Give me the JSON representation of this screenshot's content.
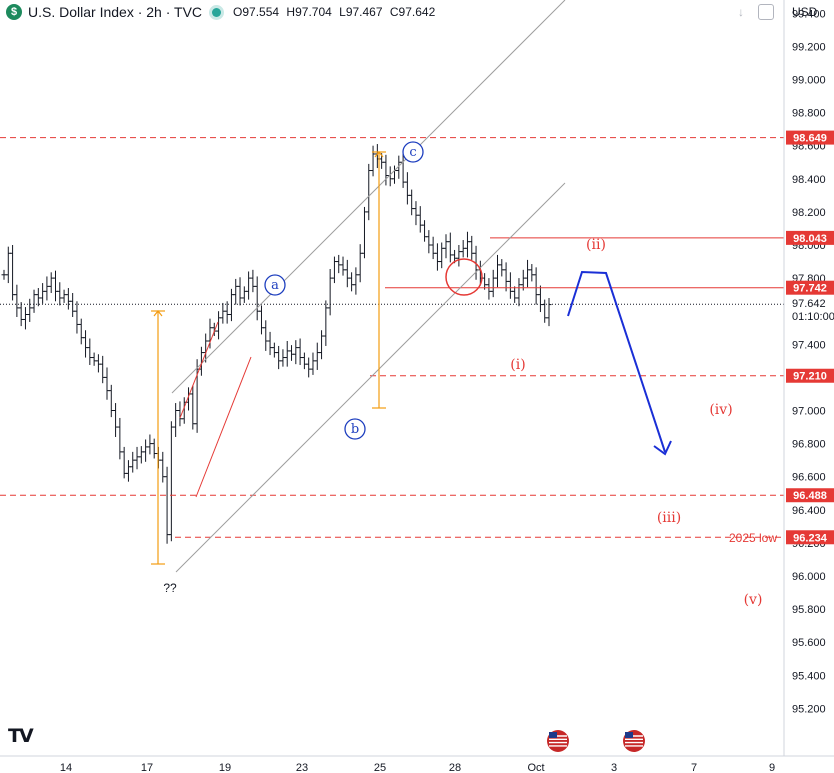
{
  "header": {
    "symbol_letter": "$",
    "title": "U.S. Dollar Index · 2h · TVC",
    "ohlc": [
      {
        "key": "O",
        "value": "97.554"
      },
      {
        "key": "H",
        "value": "97.704"
      },
      {
        "key": "L",
        "value": "97.467"
      },
      {
        "key": "C",
        "value": "97.642"
      }
    ],
    "currency": "USD"
  },
  "logo_text": "TV",
  "colors": {
    "price_level": "#e53935",
    "channel": "#9e9e9e",
    "wave_blue": "#1e3fbf",
    "projection": "#1a2fd6",
    "measure": "#f39c12",
    "candle": "#131722",
    "current_price_bg": "#131722",
    "symbol_green": "#1d8a5d"
  },
  "chart_data": {
    "type": "candlestick",
    "x_ticks": [
      "14",
      "17",
      "19",
      "23",
      "25",
      "28",
      "Oct",
      "3",
      "7",
      "9"
    ],
    "y_ticks": [
      "99.400",
      "99.200",
      "99.000",
      "98.800",
      "98.600",
      "98.400",
      "98.200",
      "98.000",
      "97.800",
      "97.600",
      "97.400",
      "97.200",
      "97.000",
      "96.800",
      "96.600",
      "96.400",
      "96.200",
      "96.000",
      "95.800",
      "95.600",
      "95.400",
      "95.200"
    ],
    "ylim": [
      95.1,
      99.65
    ],
    "current_price": {
      "value": "97.642",
      "countdown": "01:10:00"
    },
    "price_levels": [
      {
        "label": "98.649",
        "value": 98.649,
        "style": "dashed"
      },
      {
        "label": "98.043",
        "value": 98.043,
        "style": "solid"
      },
      {
        "label": "97.742",
        "value": 97.742,
        "style": "solid"
      },
      {
        "label": "97.210",
        "value": 97.21,
        "style": "dashed"
      },
      {
        "label": "96.488",
        "value": 96.488,
        "style": "dashed"
      },
      {
        "label": "96.234",
        "value": 96.234,
        "style": "dashed"
      }
    ],
    "wave_labels_blue": [
      "a",
      "b",
      "c"
    ],
    "wave_labels_red": [
      {
        "text": "(ii)"
      },
      {
        "text": "(i)"
      },
      {
        "text": "(iv)"
      },
      {
        "text": "(iii)"
      },
      {
        "text": "(v)"
      }
    ],
    "annotations": [
      "2025 low",
      "??"
    ],
    "close_series": [
      97.82,
      97.95,
      97.7,
      97.62,
      97.55,
      97.58,
      97.62,
      97.7,
      97.68,
      97.72,
      97.75,
      97.8,
      97.72,
      97.68,
      97.7,
      97.66,
      97.6,
      97.52,
      97.44,
      97.38,
      97.32,
      97.3,
      97.28,
      97.2,
      97.12,
      97.0,
      96.9,
      96.75,
      96.62,
      96.66,
      96.7,
      96.72,
      96.75,
      96.78,
      96.8,
      96.74,
      96.7,
      96.6,
      96.25,
      96.9,
      97.0,
      96.95,
      97.05,
      97.1,
      96.92,
      97.25,
      97.35,
      97.42,
      97.5,
      97.48,
      97.56,
      97.6,
      97.58,
      97.7,
      97.75,
      97.68,
      97.72,
      97.8,
      97.75,
      97.6,
      97.5,
      97.42,
      97.38,
      97.35,
      97.3,
      97.32,
      97.36,
      97.34,
      97.38,
      97.32,
      97.28,
      97.25,
      97.3,
      97.35,
      97.45,
      97.62,
      97.8,
      97.9,
      97.88,
      97.85,
      97.8,
      97.76,
      97.82,
      97.95,
      98.2,
      98.45,
      98.55,
      98.52,
      98.5,
      98.42,
      98.4,
      98.45,
      98.5,
      98.38,
      98.3,
      98.22,
      98.18,
      98.12,
      98.05,
      98.0,
      97.95,
      97.9,
      97.98,
      98.02,
      97.94,
      97.92,
      97.96,
      97.98,
      98.02,
      97.95,
      97.85,
      97.8,
      97.76,
      97.72,
      97.8,
      97.88,
      97.85,
      97.78,
      97.72,
      97.68,
      97.76,
      97.8,
      97.85,
      97.82,
      97.7,
      97.64,
      97.56,
      97.64
    ]
  }
}
